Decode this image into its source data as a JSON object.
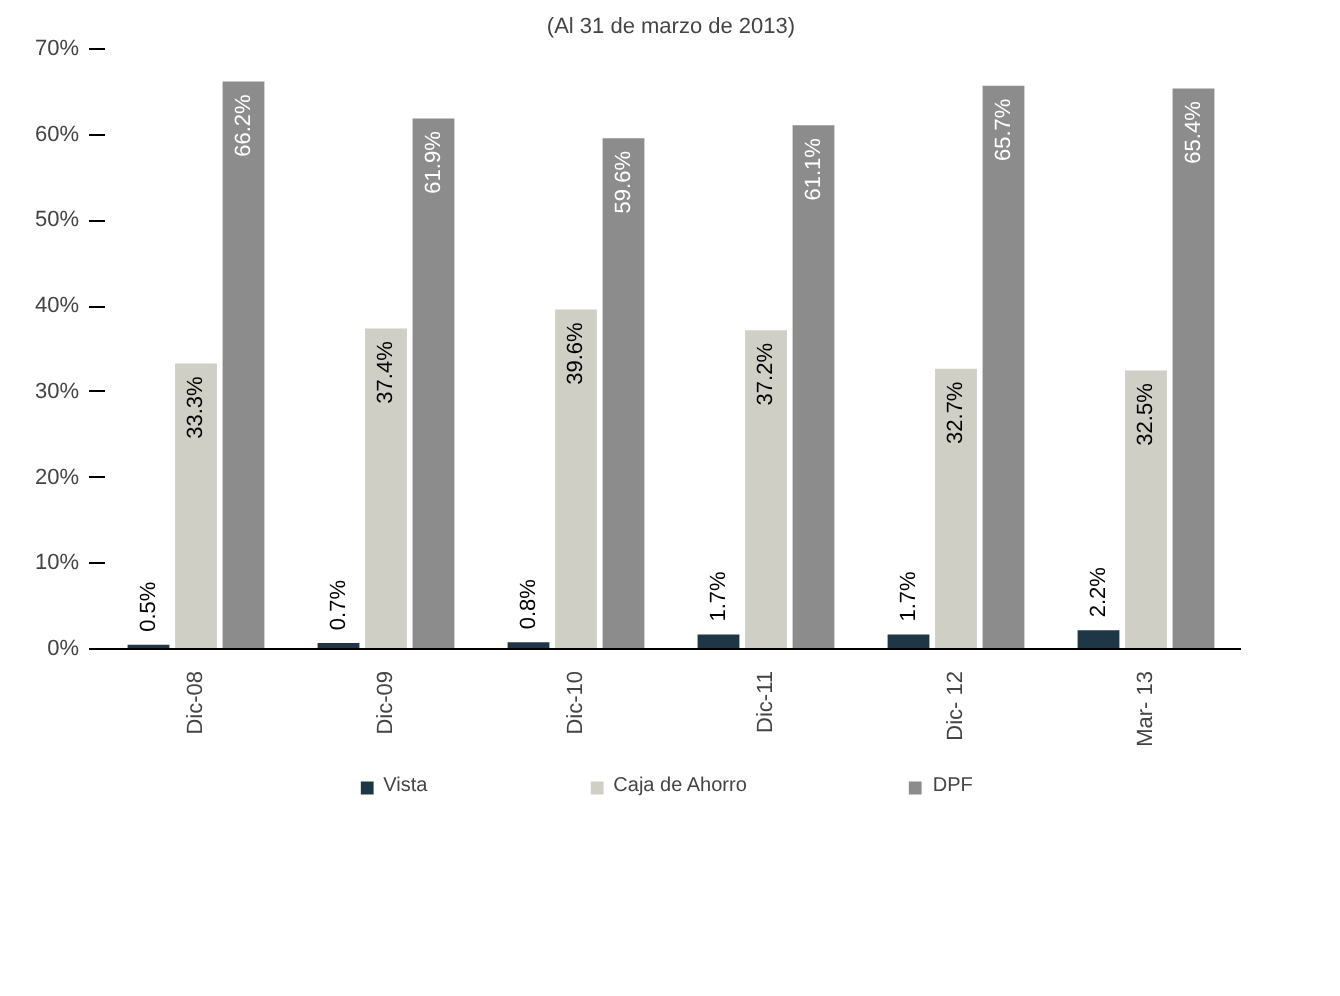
{
  "chart_data": {
    "type": "bar",
    "title": "(Al 31 de marzo de 2013)",
    "categories": [
      "Dic-08",
      "Dic-09",
      "Dic-10",
      "Dic-11",
      "Dic- 12",
      "Mar- 13"
    ],
    "series": [
      {
        "name": "Vista",
        "color": "#1f3646",
        "values": [
          0.5,
          0.7,
          0.8,
          1.7,
          1.7,
          2.2
        ],
        "value_labels": [
          "0.5%",
          "0.7%",
          "0.8%",
          "1.7%",
          "1.7%",
          "2.2%"
        ]
      },
      {
        "name": "Caja de Ahorro",
        "color": "#cfcfc6",
        "values": [
          33.3,
          37.4,
          39.6,
          37.2,
          32.7,
          32.5
        ],
        "value_labels": [
          "33.3%",
          "37.4%",
          "39.6%",
          "37.2%",
          "32.7%",
          "32.5%"
        ]
      },
      {
        "name": "DPF",
        "color": "#8c8c8c",
        "values": [
          66.2,
          61.9,
          59.6,
          61.1,
          65.7,
          65.4
        ],
        "value_labels": [
          "66.2%",
          "61.9%",
          "59.6%",
          "61.1%",
          "65.7%",
          "65.4%"
        ]
      }
    ],
    "ylim": [
      0,
      70
    ],
    "yticks": [
      {
        "value": 0,
        "label": "0%"
      },
      {
        "value": 10,
        "label": "10%"
      },
      {
        "value": 20,
        "label": "20%"
      },
      {
        "value": 30,
        "label": "30%"
      },
      {
        "value": 40,
        "label": "40%"
      },
      {
        "value": 50,
        "label": "50%"
      },
      {
        "value": 60,
        "label": "60%"
      },
      {
        "value": 70,
        "label": "70%"
      }
    ],
    "grid": false,
    "legend": "bottom"
  }
}
